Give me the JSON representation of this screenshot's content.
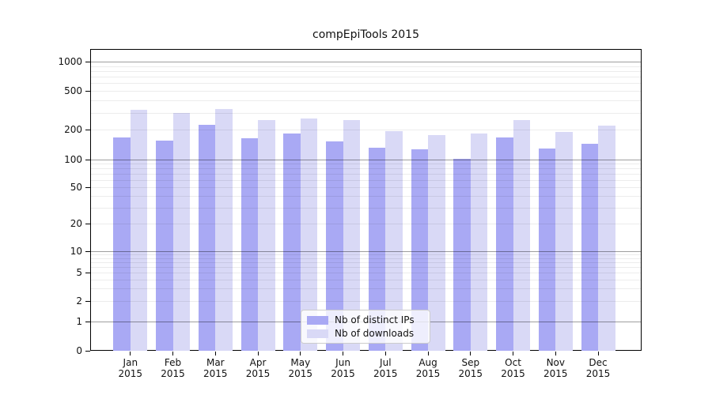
{
  "chart_data": {
    "type": "bar",
    "title": "compEpiTools 2015",
    "categories": [
      "Jan",
      "Feb",
      "Mar",
      "Apr",
      "May",
      "Jun",
      "Jul",
      "Aug",
      "Sep",
      "Oct",
      "Nov",
      "Dec"
    ],
    "category_year": "2015",
    "series": [
      {
        "name": "Nb of distinct IPs",
        "color": "#a9a9f4",
        "values": [
          167,
          156,
          225,
          163,
          183,
          152,
          132,
          126,
          101,
          167,
          128,
          143
        ]
      },
      {
        "name": "Nb of downloads",
        "color": "#d9d9f6",
        "values": [
          322,
          296,
          330,
          253,
          260,
          250,
          195,
          177,
          184,
          254,
          192,
          222
        ]
      }
    ],
    "y_ticks": [
      0,
      1,
      2,
      5,
      10,
      20,
      50,
      100,
      200,
      500,
      1000
    ],
    "y_scale": "symlog",
    "ylim": [
      0,
      1400
    ],
    "grid": true,
    "legend_position": "lower center"
  }
}
